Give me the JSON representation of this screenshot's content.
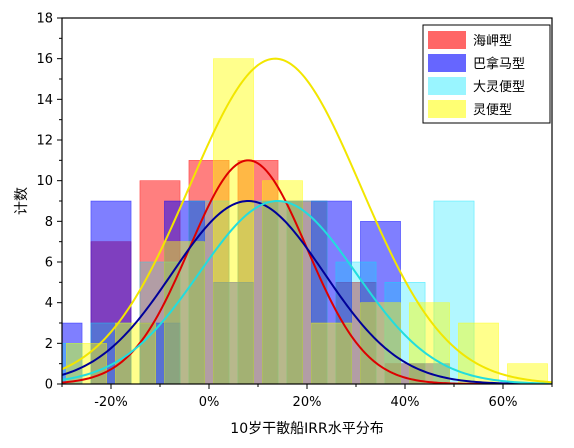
{
  "chart_data": {
    "type": "bar",
    "xlabel": "10岁干散船IRR水平分布",
    "ylabel": "计数",
    "xlim": [
      -0.3,
      0.7
    ],
    "ylim": [
      0,
      18
    ],
    "x_ticks": [
      -0.2,
      0.0,
      0.2,
      0.4,
      0.6
    ],
    "x_tick_labels": [
      "-20%",
      "0%",
      "20%",
      "40%",
      "60%"
    ],
    "y_ticks": [
      0,
      2,
      4,
      6,
      8,
      10,
      12,
      14,
      16,
      18
    ],
    "y_tick_labels": [
      "0",
      "2",
      "4",
      "6",
      "8",
      "10",
      "12",
      "14",
      "16",
      "18"
    ],
    "grid": false,
    "legend_position": "top-right",
    "bin_width": 0.1,
    "series": [
      {
        "name": "海岬型",
        "color": "#ff0000",
        "fill_opacity": 0.5,
        "bars": [
          {
            "x": -0.2,
            "value": 7
          },
          {
            "x": -0.1,
            "value": 10
          },
          {
            "x": 0.0,
            "value": 11
          },
          {
            "x": 0.1,
            "value": 11
          },
          {
            "x": 0.2,
            "value": 9
          },
          {
            "x": 0.3,
            "value": 5
          },
          {
            "x": 0.4,
            "value": 1
          }
        ],
        "curve_color": "#dd0000",
        "curve": {
          "mean": 0.08,
          "peak": 11.0,
          "sd": 0.12
        }
      },
      {
        "name": "巴拿马型",
        "color": "#0000ff",
        "fill_opacity": 0.5,
        "bars": [
          {
            "x": -0.3,
            "value": 3
          },
          {
            "x": -0.2,
            "value": 9
          },
          {
            "x": -0.1,
            "value": 3
          },
          {
            "x": -0.05,
            "value": 9
          },
          {
            "x": 0.05,
            "value": 5
          },
          {
            "x": 0.15,
            "value": 9
          },
          {
            "x": 0.25,
            "value": 9
          },
          {
            "x": 0.35,
            "value": 8
          },
          {
            "x": 0.45,
            "value": 1
          }
        ],
        "curve_color": "#000099",
        "curve": {
          "mean": 0.08,
          "peak": 9.0,
          "sd": 0.155
        }
      },
      {
        "name": "大灵便型",
        "color": "#00e5ff",
        "fill_opacity": 0.3,
        "bars": [
          {
            "x": -0.3,
            "value": 2
          },
          {
            "x": -0.2,
            "value": 3
          },
          {
            "x": -0.1,
            "value": 6
          },
          {
            "x": 0.0,
            "value": 9
          },
          {
            "x": 0.1,
            "value": 9
          },
          {
            "x": 0.2,
            "value": 9
          },
          {
            "x": 0.3,
            "value": 6
          },
          {
            "x": 0.4,
            "value": 5
          },
          {
            "x": 0.5,
            "value": 9
          }
        ],
        "curve_color": "#22dddd",
        "curve": {
          "mean": 0.14,
          "peak": 9.0,
          "sd": 0.16
        }
      },
      {
        "name": "灵便型",
        "color": "#ffff00",
        "fill_opacity": 0.45,
        "bars": [
          {
            "x": -0.25,
            "value": 2
          },
          {
            "x": -0.15,
            "value": 3
          },
          {
            "x": -0.05,
            "value": 7
          },
          {
            "x": 0.05,
            "value": 16
          },
          {
            "x": 0.15,
            "value": 10
          },
          {
            "x": 0.25,
            "value": 3
          },
          {
            "x": 0.35,
            "value": 4
          },
          {
            "x": 0.45,
            "value": 4
          },
          {
            "x": 0.55,
            "value": 3
          },
          {
            "x": 0.65,
            "value": 1
          }
        ],
        "curve_color": "#f2e600",
        "curve": {
          "mean": 0.135,
          "peak": 16.0,
          "sd": 0.175
        }
      }
    ]
  }
}
